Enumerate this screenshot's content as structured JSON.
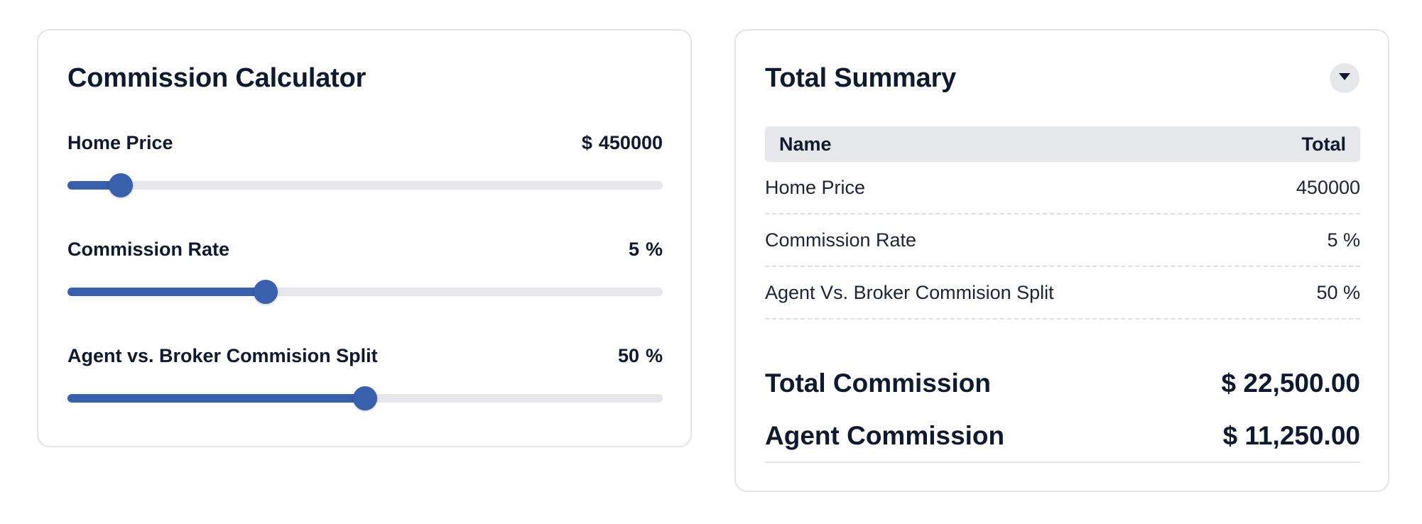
{
  "calculator": {
    "title": "Commission Calculator",
    "sliders": [
      {
        "label": "Home Price",
        "prefix": "$",
        "value": "450000",
        "suffix": "",
        "fill_fraction": 0.09
      },
      {
        "label": "Commission Rate",
        "prefix": "",
        "value": "5",
        "suffix": "%",
        "fill_fraction": 0.333
      },
      {
        "label": "Agent vs. Broker Commision Split",
        "prefix": "",
        "value": "50",
        "suffix": "%",
        "fill_fraction": 0.5
      }
    ]
  },
  "summary": {
    "title": "Total Summary",
    "toggle_icon": "caret-down-icon",
    "table": {
      "headers": [
        "Name",
        "Total"
      ],
      "rows": [
        {
          "name": "Home Price",
          "total": "450000"
        },
        {
          "name": "Commission Rate",
          "total": "5 %"
        },
        {
          "name": "Agent Vs. Broker Commision Split",
          "total": "50 %"
        }
      ]
    },
    "totals": [
      {
        "label": "Total Commission",
        "value": "$ 22,500.00"
      },
      {
        "label": "Agent Commission",
        "value": "$ 11,250.00"
      }
    ]
  },
  "colors": {
    "accent": "#3960aa",
    "track": "#e6e7ea",
    "text": "#0f1a2e",
    "border": "#e3e5e8"
  }
}
